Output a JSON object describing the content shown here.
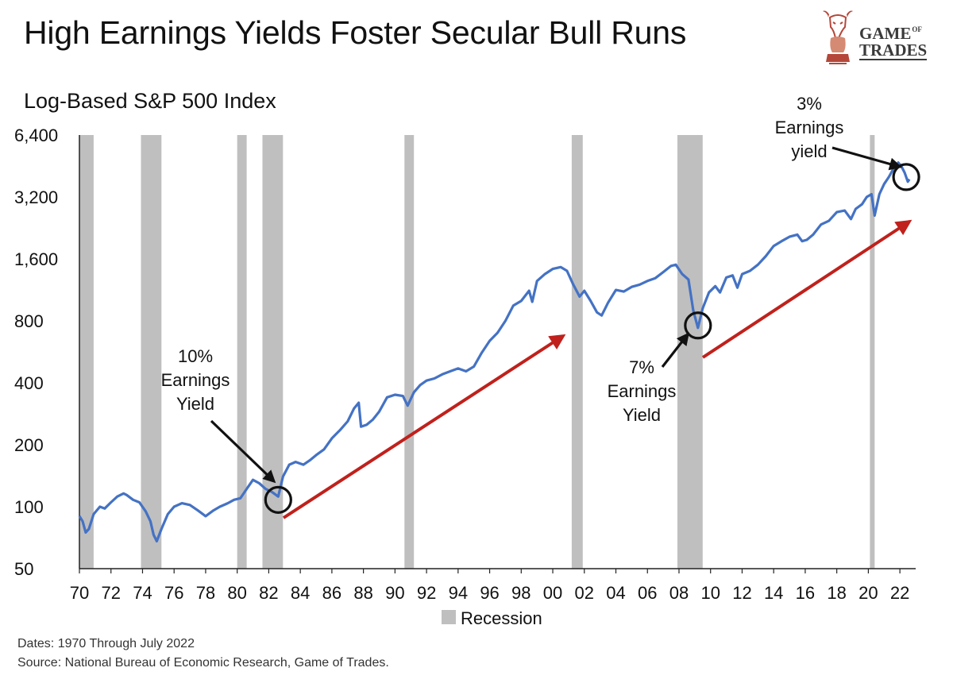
{
  "header": {
    "title": "High Earnings Yields Foster Secular Bull Runs",
    "logo_text_top": "GAME",
    "logo_text_of": "OF",
    "logo_text_bottom": "TRADES"
  },
  "footer": {
    "dates": "Dates: 1970 Through July 2022",
    "source": "Source: National Bureau of Economic Research, Game of Trades."
  },
  "colors": {
    "series": "#4472c4",
    "recession": "#bfbfbf",
    "trend_arrow": "#c0211c",
    "annotation": "#111111"
  },
  "chart_data": {
    "type": "line",
    "title": "High Earnings Yields Foster Secular Bull Runs",
    "ylabel": "Log-Based S&P 500 Index",
    "yscale": "log2",
    "ylim": [
      50,
      6400
    ],
    "xlim": [
      1970,
      2023.0
    ],
    "y_ticks": [
      50,
      100,
      200,
      400,
      800,
      1600,
      3200,
      6400
    ],
    "y_tick_labels": [
      "50",
      "100",
      "200",
      "400",
      "800",
      "1,600",
      "3,200",
      "6,400"
    ],
    "x_ticks": [
      1970,
      1972,
      1974,
      1976,
      1978,
      1980,
      1982,
      1984,
      1986,
      1988,
      1990,
      1992,
      1994,
      1996,
      1998,
      2000,
      2002,
      2004,
      2006,
      2008,
      2010,
      2012,
      2014,
      2016,
      2018,
      2020,
      2022
    ],
    "x_tick_labels": [
      "70",
      "72",
      "74",
      "76",
      "78",
      "80",
      "82",
      "84",
      "86",
      "88",
      "90",
      "92",
      "94",
      "96",
      "98",
      "00",
      "02",
      "04",
      "06",
      "08",
      "10",
      "12",
      "14",
      "16",
      "18",
      "20",
      "22"
    ],
    "legend": {
      "label": "Recession",
      "placement": "bottom-center"
    },
    "recessions": [
      [
        1970.0,
        1970.9
      ],
      [
        1973.9,
        1975.2
      ],
      [
        1980.0,
        1980.6
      ],
      [
        1981.6,
        1982.9
      ],
      [
        1990.6,
        1991.2
      ],
      [
        2001.2,
        2001.9
      ],
      [
        2007.9,
        2009.5
      ],
      [
        2020.1,
        2020.4
      ]
    ],
    "series": [
      {
        "x": [
          1970.0,
          1970.2,
          1970.4,
          1970.6,
          1970.9,
          1971.3,
          1971.6,
          1972.0,
          1972.4,
          1972.8,
          1973.0,
          1973.4,
          1973.8,
          1974.2,
          1974.5,
          1974.7,
          1974.9,
          1975.2,
          1975.6,
          1976.0,
          1976.5,
          1977.0,
          1977.5,
          1978.0,
          1978.5,
          1978.9,
          1979.4,
          1979.8,
          1980.2,
          1980.6,
          1981.0,
          1981.4,
          1981.8,
          1982.2,
          1982.6,
          1982.9,
          1983.3,
          1983.7,
          1984.2,
          1984.6,
          1985.0,
          1985.5,
          1986.0,
          1986.5,
          1987.0,
          1987.4,
          1987.7,
          1987.85,
          1988.2,
          1988.6,
          1989.0,
          1989.5,
          1990.0,
          1990.5,
          1990.8,
          1991.2,
          1991.6,
          1992.0,
          1992.5,
          1993.0,
          1993.5,
          1994.0,
          1994.5,
          1995.0,
          1995.5,
          1996.0,
          1996.5,
          1997.0,
          1997.5,
          1998.0,
          1998.5,
          1998.7,
          1999.0,
          1999.5,
          2000.0,
          2000.5,
          2000.9,
          2001.3,
          2001.7,
          2002.0,
          2002.4,
          2002.8,
          2003.1,
          2003.5,
          2004.0,
          2004.5,
          2005.0,
          2005.5,
          2006.0,
          2006.5,
          2007.0,
          2007.5,
          2007.8,
          2008.2,
          2008.6,
          2008.9,
          2009.2,
          2009.5,
          2009.9,
          2010.3,
          2010.6,
          2011.0,
          2011.4,
          2011.7,
          2012.0,
          2012.5,
          2013.0,
          2013.5,
          2014.0,
          2014.5,
          2015.0,
          2015.5,
          2015.8,
          2016.1,
          2016.5,
          2017.0,
          2017.5,
          2018.0,
          2018.5,
          2018.9,
          2019.2,
          2019.6,
          2019.9,
          2020.2,
          2020.4,
          2020.7,
          2021.0,
          2021.3,
          2021.6,
          2021.9,
          2022.1,
          2022.3,
          2022.5,
          2022.6
        ],
        "values": [
          90,
          85,
          75,
          78,
          92,
          100,
          98,
          105,
          112,
          116,
          114,
          108,
          105,
          95,
          85,
          73,
          68,
          78,
          92,
          100,
          104,
          102,
          96,
          90,
          96,
          100,
          104,
          108,
          110,
          122,
          135,
          130,
          122,
          118,
          112,
          140,
          160,
          165,
          160,
          168,
          178,
          190,
          215,
          235,
          260,
          300,
          320,
          245,
          250,
          265,
          290,
          340,
          350,
          345,
          310,
          360,
          390,
          410,
          420,
          440,
          455,
          470,
          455,
          480,
          560,
          640,
          700,
          800,
          950,
          1000,
          1120,
          990,
          1250,
          1350,
          1430,
          1460,
          1400,
          1200,
          1050,
          1120,
          1000,
          880,
          850,
          980,
          1130,
          1110,
          1170,
          1200,
          1250,
          1290,
          1380,
          1480,
          1500,
          1350,
          1270,
          900,
          740,
          920,
          1100,
          1180,
          1100,
          1300,
          1330,
          1160,
          1350,
          1400,
          1500,
          1650,
          1850,
          1950,
          2050,
          2100,
          1950,
          1980,
          2100,
          2350,
          2450,
          2700,
          2750,
          2500,
          2800,
          2950,
          3200,
          3300,
          2600,
          3300,
          3700,
          4000,
          4400,
          4700,
          4500,
          4200,
          3800,
          3900
        ]
      }
    ],
    "annotations": [
      {
        "text": [
          "10%",
          "Earnings",
          "Yield"
        ],
        "x": 1982.6,
        "y": 108
      },
      {
        "text": [
          "7%",
          "Earnings",
          "Yield"
        ],
        "x": 2009.2,
        "y": 760
      },
      {
        "text": [
          "3%",
          "Earnings",
          "yield"
        ],
        "x": 2022.4,
        "y": 4000
      }
    ]
  }
}
